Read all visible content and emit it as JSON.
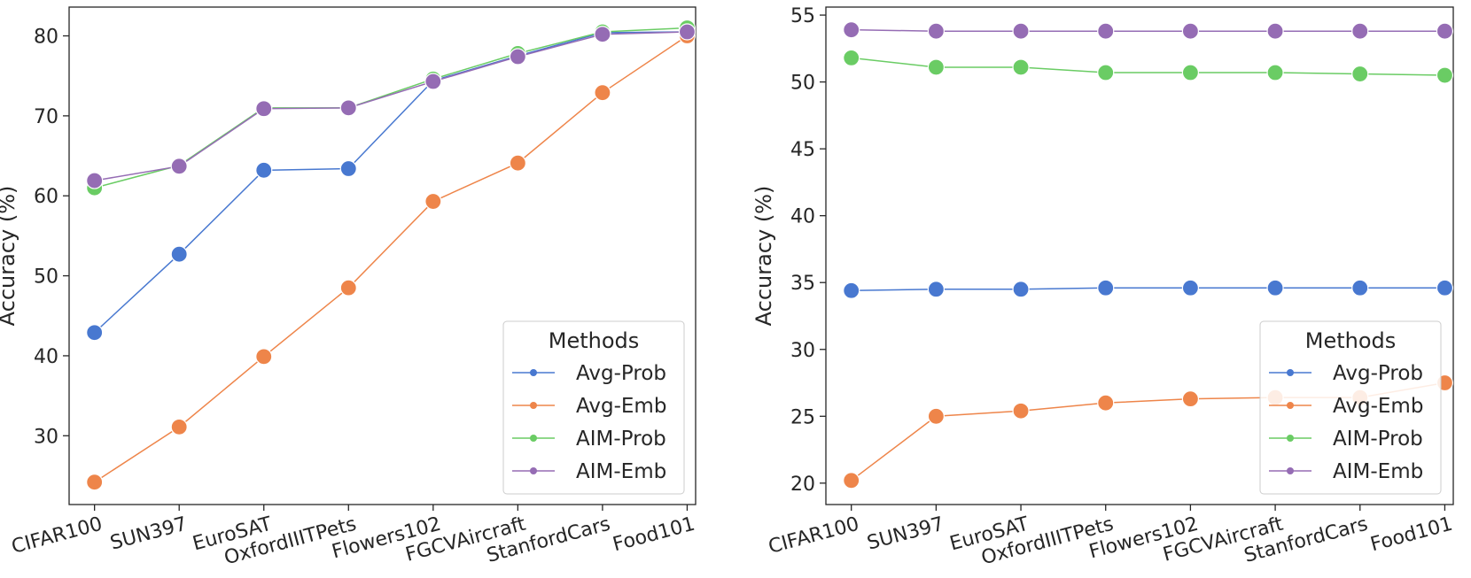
{
  "chart_data": [
    {
      "type": "line",
      "title": "",
      "xlabel": "",
      "ylabel": "Accuracy (%)",
      "categories": [
        "CIFAR100",
        "SUN397",
        "EuroSAT",
        "OxfordIIITPets",
        "Flowers102",
        "FGCVAircraft",
        "StanfordCars",
        "Food101"
      ],
      "ylim": [
        21.4,
        83.6
      ],
      "yticks": [
        30,
        40,
        50,
        60,
        70,
        80
      ],
      "legend": {
        "title": "Methods",
        "location": "lower-right"
      },
      "series": [
        {
          "name": "Avg-Prob",
          "color": "#4878d0",
          "values": [
            42.9,
            52.7,
            63.2,
            63.4,
            74.4,
            77.5,
            80.4,
            80.5
          ]
        },
        {
          "name": "Avg-Emb",
          "color": "#ee854a",
          "values": [
            24.2,
            31.1,
            39.9,
            48.5,
            59.3,
            64.1,
            72.9,
            80.0
          ]
        },
        {
          "name": "AIM-Prob",
          "color": "#6acc64",
          "values": [
            61.0,
            63.8,
            71.0,
            71.0,
            74.6,
            77.8,
            80.5,
            81.0
          ]
        },
        {
          "name": "AIM-Emb",
          "color": "#956cb4",
          "values": [
            61.9,
            63.7,
            70.9,
            71.0,
            74.3,
            77.4,
            80.2,
            80.5
          ]
        }
      ]
    },
    {
      "type": "line",
      "title": "",
      "xlabel": "",
      "ylabel": "Accuracy (%)",
      "categories": [
        "CIFAR100",
        "SUN397",
        "EuroSAT",
        "OxfordIIITPets",
        "Flowers102",
        "FGCVAircraft",
        "StanfordCars",
        "Food101"
      ],
      "ylim": [
        18.4,
        55.6
      ],
      "yticks": [
        20,
        25,
        30,
        35,
        40,
        45,
        50,
        55
      ],
      "legend": {
        "title": "Methods",
        "location": "lower-right"
      },
      "series": [
        {
          "name": "Avg-Prob",
          "color": "#4878d0",
          "values": [
            34.4,
            34.5,
            34.5,
            34.6,
            34.6,
            34.6,
            34.6,
            34.6
          ]
        },
        {
          "name": "Avg-Emb",
          "color": "#ee854a",
          "values": [
            20.2,
            25.0,
            25.4,
            26.0,
            26.3,
            26.4,
            26.4,
            27.5
          ]
        },
        {
          "name": "AIM-Prob",
          "color": "#6acc64",
          "values": [
            51.8,
            51.1,
            51.1,
            50.7,
            50.7,
            50.7,
            50.6,
            50.5
          ]
        },
        {
          "name": "AIM-Emb",
          "color": "#956cb4",
          "values": [
            53.9,
            53.8,
            53.8,
            53.8,
            53.8,
            53.8,
            53.8,
            53.8
          ]
        }
      ]
    }
  ]
}
